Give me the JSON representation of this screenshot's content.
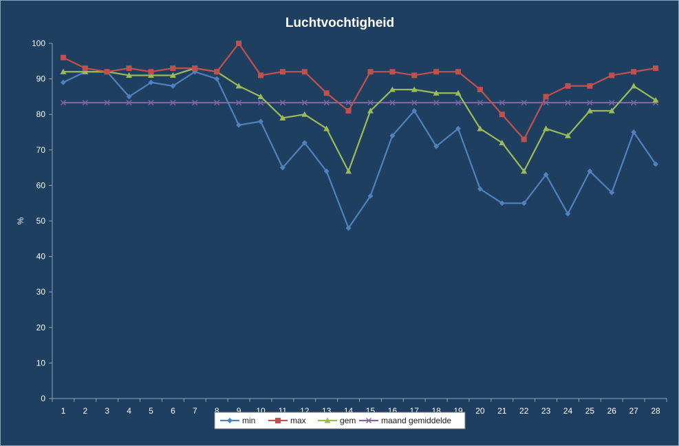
{
  "chart_data": {
    "type": "line",
    "title": "Luchtvochtigheid",
    "xlabel": "",
    "ylabel": "%",
    "ylim": [
      0,
      100
    ],
    "yticks": [
      0,
      10,
      20,
      30,
      40,
      50,
      60,
      70,
      80,
      90,
      100
    ],
    "categories": [
      "1",
      "2",
      "3",
      "4",
      "5",
      "6",
      "7",
      "8",
      "9",
      "10",
      "11",
      "12",
      "13",
      "14",
      "15",
      "16",
      "17",
      "18",
      "19",
      "20",
      "21",
      "22",
      "23",
      "24",
      "25",
      "26",
      "27",
      "28"
    ],
    "grid": false,
    "legend_position": "bottom",
    "series": [
      {
        "name": "min",
        "color": "#4f81bd",
        "marker": "diamond",
        "values": [
          89,
          92,
          92,
          85,
          89,
          88,
          92,
          90,
          77,
          78,
          65,
          72,
          64,
          48,
          57,
          74,
          81,
          71,
          76,
          59,
          55,
          55,
          63,
          52,
          64,
          58,
          75,
          66
        ]
      },
      {
        "name": "max",
        "color": "#c0504d",
        "marker": "square",
        "values": [
          96,
          93,
          92,
          93,
          92,
          93,
          93,
          92,
          100,
          91,
          92,
          92,
          86,
          81,
          92,
          92,
          91,
          92,
          92,
          87,
          80,
          73,
          85,
          88,
          88,
          91,
          92,
          93
        ]
      },
      {
        "name": "gem",
        "color": "#9bbb59",
        "marker": "triangle",
        "values": [
          92,
          92,
          92,
          91,
          91,
          91,
          93,
          92,
          88,
          85,
          79,
          80,
          76,
          64,
          81,
          87,
          87,
          86,
          86,
          76,
          72,
          64,
          76,
          74,
          81,
          81,
          88,
          84
        ]
      },
      {
        "name": "maand gemiddelde",
        "color": "#8064a2",
        "marker": "x",
        "values": [
          83.3,
          83.3,
          83.3,
          83.3,
          83.3,
          83.3,
          83.3,
          83.3,
          83.3,
          83.3,
          83.3,
          83.3,
          83.3,
          83.3,
          83.3,
          83.3,
          83.3,
          83.3,
          83.3,
          83.3,
          83.3,
          83.3,
          83.3,
          83.3,
          83.3,
          83.3,
          83.3,
          83.3
        ]
      }
    ]
  }
}
